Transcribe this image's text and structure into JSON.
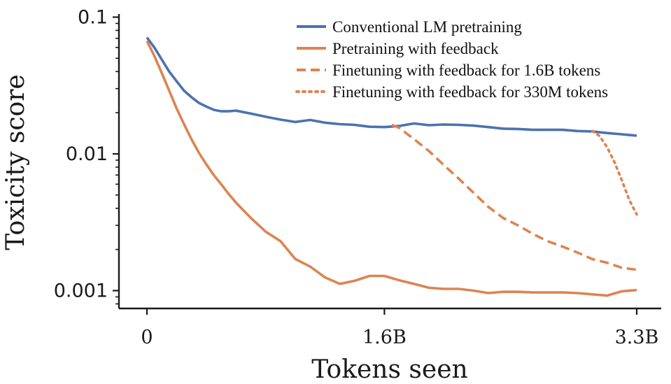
{
  "chart_data": {
    "type": "line",
    "xlabel": "Tokens seen",
    "ylabel": "Toxicity score",
    "yscale": "log",
    "xlim": [
      -0.17,
      3.45
    ],
    "ylim": [
      0.00077,
      0.1
    ],
    "x_ticks": [
      {
        "value": 0,
        "label": "0"
      },
      {
        "value": 1.6,
        "label": "1.6B"
      },
      {
        "value": 3.3,
        "label": "3.3B"
      }
    ],
    "y_ticks": [
      {
        "value": 0.1,
        "label": "0.1"
      },
      {
        "value": 0.01,
        "label": "0.01"
      },
      {
        "value": 0.001,
        "label": "0.001"
      }
    ],
    "legend_position": "top-right",
    "grid": false,
    "series": [
      {
        "name": "Conventional LM pretraining",
        "color": "#4c72b0",
        "style": "solid",
        "x": [
          0,
          0.05,
          0.1,
          0.15,
          0.2,
          0.25,
          0.3,
          0.35,
          0.4,
          0.45,
          0.5,
          0.55,
          0.6,
          0.7,
          0.8,
          0.9,
          1.0,
          1.1,
          1.2,
          1.3,
          1.4,
          1.5,
          1.6,
          1.7,
          1.8,
          1.9,
          2.0,
          2.1,
          2.2,
          2.3,
          2.4,
          2.5,
          2.6,
          2.7,
          2.8,
          2.9,
          3.0,
          3.1,
          3.2,
          3.3
        ],
        "y": [
          0.071,
          0.06,
          0.049,
          0.04,
          0.034,
          0.029,
          0.026,
          0.0236,
          0.0222,
          0.021,
          0.0205,
          0.0205,
          0.0207,
          0.0197,
          0.0187,
          0.0178,
          0.0171,
          0.0177,
          0.0169,
          0.0165,
          0.0163,
          0.0158,
          0.0157,
          0.016,
          0.0167,
          0.0162,
          0.0164,
          0.0163,
          0.0161,
          0.0157,
          0.0153,
          0.0152,
          0.015,
          0.015,
          0.015,
          0.0147,
          0.0146,
          0.0142,
          0.0139,
          0.0136
        ]
      },
      {
        "name": "Pretraining with feedback",
        "color": "#dd8452",
        "style": "solid",
        "x": [
          0,
          0.05,
          0.1,
          0.15,
          0.2,
          0.25,
          0.3,
          0.35,
          0.4,
          0.45,
          0.5,
          0.55,
          0.6,
          0.7,
          0.8,
          0.9,
          1.0,
          1.1,
          1.2,
          1.3,
          1.4,
          1.5,
          1.6,
          1.7,
          1.8,
          1.9,
          2.0,
          2.1,
          2.2,
          2.3,
          2.4,
          2.5,
          2.6,
          2.7,
          2.8,
          2.9,
          3.0,
          3.1,
          3.2,
          3.3
        ],
        "y": [
          0.067,
          0.052,
          0.039,
          0.029,
          0.0215,
          0.0165,
          0.0128,
          0.0102,
          0.0084,
          0.007,
          0.006,
          0.0051,
          0.0044,
          0.0034,
          0.0027,
          0.0023,
          0.0017,
          0.0015,
          0.00125,
          0.00112,
          0.00118,
          0.00128,
          0.00128,
          0.00119,
          0.00112,
          0.00105,
          0.00103,
          0.00103,
          0.001,
          0.00096,
          0.00098,
          0.00098,
          0.00097,
          0.00097,
          0.00097,
          0.00096,
          0.00094,
          0.00092,
          0.00099,
          0.00101
        ]
      },
      {
        "name": "Finetuning with feedback for 1.6B tokens",
        "color": "#dd8452",
        "style": "dashed",
        "x": [
          1.65,
          1.7,
          1.8,
          1.9,
          2.0,
          2.1,
          2.2,
          2.3,
          2.4,
          2.5,
          2.6,
          2.7,
          2.8,
          2.9,
          3.0,
          3.1,
          3.2,
          3.3
        ],
        "y": [
          0.0163,
          0.0155,
          0.0128,
          0.0105,
          0.0083,
          0.0066,
          0.0052,
          0.0041,
          0.0034,
          0.003,
          0.0026,
          0.0023,
          0.0021,
          0.0019,
          0.0017,
          0.0016,
          0.00147,
          0.00142
        ]
      },
      {
        "name": "Finetuning with feedback for 330M tokens",
        "color": "#dd8452",
        "style": "dotted",
        "x": [
          3.0,
          3.05,
          3.1,
          3.15,
          3.2,
          3.25,
          3.3
        ],
        "y": [
          0.0147,
          0.0135,
          0.0112,
          0.0087,
          0.0064,
          0.0046,
          0.0036
        ]
      }
    ]
  }
}
